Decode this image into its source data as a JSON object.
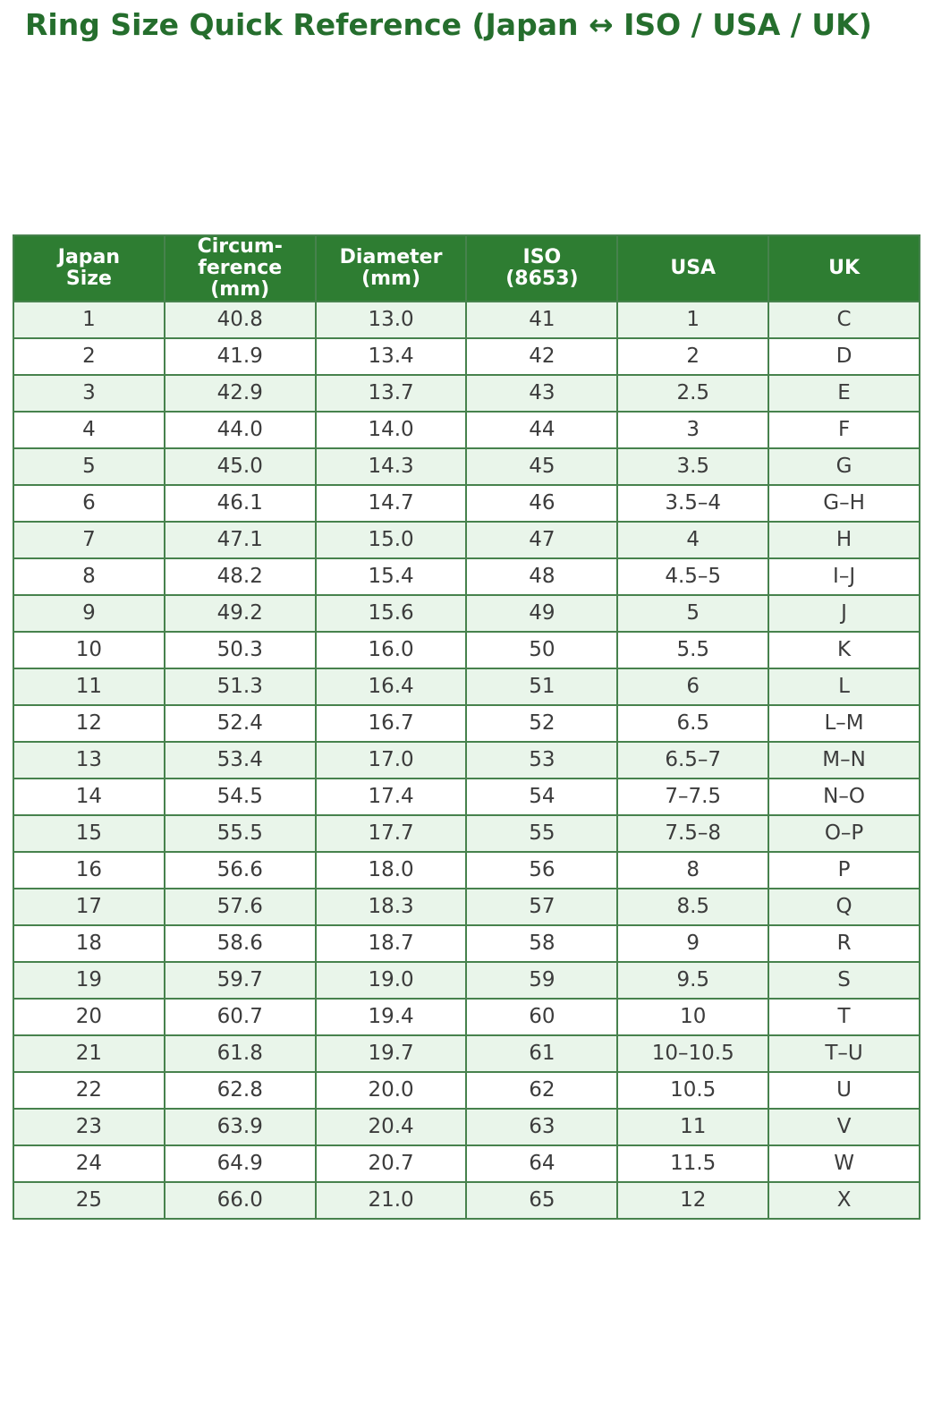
{
  "page": {
    "background": "#ffffff"
  },
  "colors": {
    "title_text": "#256e2d",
    "header_bg": "#2e7d32",
    "header_text": "#ffffff",
    "row_alt_bg": "#e9f5ea",
    "row_bg": "#ffffff",
    "cell_border": "#47824d",
    "cell_text": "#3c3c3c"
  },
  "chart_data": {
    "type": "table",
    "title": "Ring Size Quick Reference (Japan ↔ ISO / USA / UK)",
    "columns": [
      "Japan\nSize",
      "Circum-\nference\n(mm)",
      "Diameter\n(mm)",
      "ISO\n(8653)",
      "USA",
      "UK"
    ],
    "rows": [
      [
        "1",
        "40.8",
        "13.0",
        "41",
        "1",
        "C"
      ],
      [
        "2",
        "41.9",
        "13.4",
        "42",
        "2",
        "D"
      ],
      [
        "3",
        "42.9",
        "13.7",
        "43",
        "2.5",
        "E"
      ],
      [
        "4",
        "44.0",
        "14.0",
        "44",
        "3",
        "F"
      ],
      [
        "5",
        "45.0",
        "14.3",
        "45",
        "3.5",
        "G"
      ],
      [
        "6",
        "46.1",
        "14.7",
        "46",
        "3.5–4",
        "G–H"
      ],
      [
        "7",
        "47.1",
        "15.0",
        "47",
        "4",
        "H"
      ],
      [
        "8",
        "48.2",
        "15.4",
        "48",
        "4.5–5",
        "I–J"
      ],
      [
        "9",
        "49.2",
        "15.6",
        "49",
        "5",
        "J"
      ],
      [
        "10",
        "50.3",
        "16.0",
        "50",
        "5.5",
        "K"
      ],
      [
        "11",
        "51.3",
        "16.4",
        "51",
        "6",
        "L"
      ],
      [
        "12",
        "52.4",
        "16.7",
        "52",
        "6.5",
        "L–M"
      ],
      [
        "13",
        "53.4",
        "17.0",
        "53",
        "6.5–7",
        "M–N"
      ],
      [
        "14",
        "54.5",
        "17.4",
        "54",
        "7–7.5",
        "N–O"
      ],
      [
        "15",
        "55.5",
        "17.7",
        "55",
        "7.5–8",
        "O–P"
      ],
      [
        "16",
        "56.6",
        "18.0",
        "56",
        "8",
        "P"
      ],
      [
        "17",
        "57.6",
        "18.3",
        "57",
        "8.5",
        "Q"
      ],
      [
        "18",
        "58.6",
        "18.7",
        "58",
        "9",
        "R"
      ],
      [
        "19",
        "59.7",
        "19.0",
        "59",
        "9.5",
        "S"
      ],
      [
        "20",
        "60.7",
        "19.4",
        "60",
        "10",
        "T"
      ],
      [
        "21",
        "61.8",
        "19.7",
        "61",
        "10–10.5",
        "T–U"
      ],
      [
        "22",
        "62.8",
        "20.0",
        "62",
        "10.5",
        "U"
      ],
      [
        "23",
        "63.9",
        "20.4",
        "63",
        "11",
        "V"
      ],
      [
        "24",
        "64.9",
        "20.7",
        "64",
        "11.5",
        "W"
      ],
      [
        "25",
        "66.0",
        "21.0",
        "65",
        "12",
        "X"
      ]
    ]
  }
}
